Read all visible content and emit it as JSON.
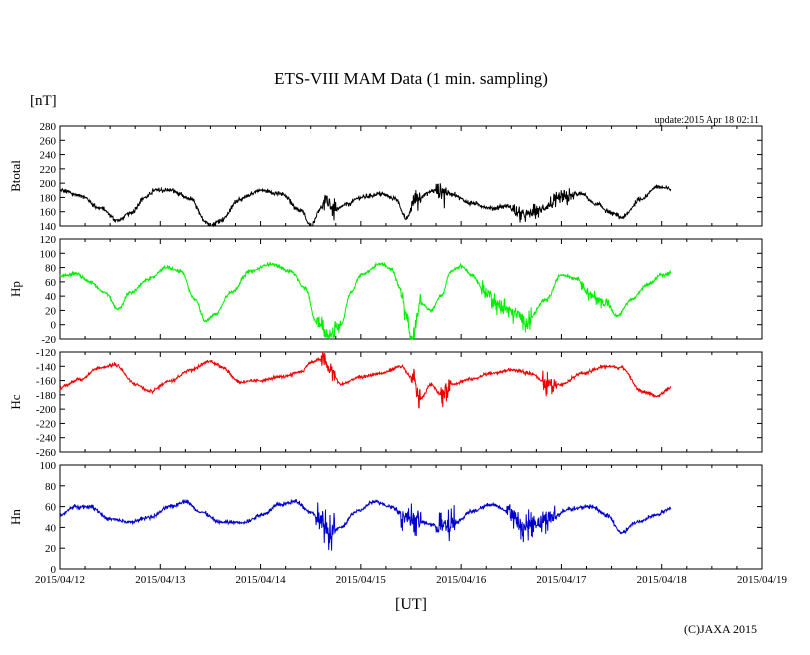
{
  "chart_data": {
    "type": "line",
    "title": "ETS-VIII MAM Data (1 min. sampling)",
    "unit_label": "[nT]",
    "update_label": "update:2015 Apr 18 02:11",
    "xlabel": "[UT]",
    "copyright": "(C)JAXA 2015",
    "x_ticks": [
      "2015/04/12",
      "2015/04/13",
      "2015/04/14",
      "2015/04/15",
      "2015/04/16",
      "2015/04/17",
      "2015/04/18",
      "2015/04/19"
    ],
    "xlim_days": [
      0,
      7
    ],
    "data_end_day": 6.09,
    "grid": false,
    "panels": [
      {
        "name": "Btotal",
        "ylabel": "Btotal",
        "color": "#000000",
        "ylim": [
          140,
          280
        ],
        "yticks": [
          140,
          160,
          180,
          200,
          220,
          240,
          260,
          280
        ],
        "x": [
          0,
          0.2,
          0.4,
          0.58,
          0.7,
          0.85,
          0.95,
          1.1,
          1.3,
          1.45,
          1.5,
          1.6,
          1.8,
          2.0,
          2.2,
          2.4,
          2.5,
          2.6,
          2.65,
          2.75,
          2.85,
          3.0,
          3.2,
          3.35,
          3.45,
          3.55,
          3.75,
          3.9,
          4.1,
          4.3,
          4.45,
          4.6,
          4.75,
          4.9,
          5.0,
          5.2,
          5.35,
          5.5,
          5.6,
          5.8,
          5.95,
          6.09
        ],
        "values": [
          190,
          183,
          165,
          148,
          158,
          180,
          190,
          190,
          178,
          147,
          140,
          148,
          178,
          190,
          185,
          162,
          140,
          165,
          175,
          162,
          170,
          180,
          185,
          178,
          150,
          180,
          190,
          185,
          172,
          165,
          168,
          155,
          160,
          170,
          178,
          185,
          170,
          158,
          152,
          178,
          195,
          192
        ],
        "noise": 4,
        "spikes": [
          [
            2.62,
            2.75,
            18
          ],
          [
            3.5,
            3.6,
            22
          ],
          [
            3.75,
            3.85,
            28
          ],
          [
            4.5,
            4.9,
            12
          ],
          [
            4.85,
            5.15,
            14
          ]
        ]
      },
      {
        "name": "Hp",
        "ylabel": "Hp",
        "color": "#00ee00",
        "ylim": [
          -20,
          120
        ],
        "yticks": [
          -20,
          0,
          20,
          40,
          60,
          80,
          100,
          120
        ],
        "x": [
          0,
          0.15,
          0.3,
          0.45,
          0.58,
          0.7,
          0.9,
          1.05,
          1.2,
          1.35,
          1.45,
          1.55,
          1.7,
          1.9,
          2.1,
          2.3,
          2.45,
          2.55,
          2.7,
          2.8,
          2.9,
          3.0,
          3.2,
          3.3,
          3.4,
          3.45,
          3.5,
          3.6,
          3.7,
          3.8,
          3.9,
          4.0,
          4.1,
          4.25,
          4.4,
          4.55,
          4.65,
          4.85,
          5.0,
          5.15,
          5.3,
          5.45,
          5.55,
          5.7,
          5.85,
          6.0,
          6.09
        ],
        "values": [
          68,
          72,
          60,
          45,
          22,
          45,
          65,
          80,
          75,
          35,
          5,
          15,
          45,
          75,
          85,
          75,
          50,
          5,
          -15,
          0,
          45,
          70,
          85,
          78,
          50,
          15,
          -18,
          30,
          20,
          40,
          75,
          82,
          70,
          45,
          25,
          15,
          5,
          35,
          70,
          65,
          40,
          30,
          12,
          35,
          55,
          70,
          72
        ],
        "noise": 3,
        "spikes": [
          [
            2.55,
            2.8,
            15
          ],
          [
            3.4,
            3.6,
            18
          ],
          [
            4.2,
            4.7,
            16
          ],
          [
            5.2,
            5.5,
            10
          ]
        ]
      },
      {
        "name": "Hc",
        "ylabel": "Hc",
        "color": "#ee0000",
        "ylim": [
          -260,
          -120
        ],
        "yticks": [
          -260,
          -240,
          -220,
          -200,
          -180,
          -160,
          -140,
          -120
        ],
        "x": [
          0,
          0.2,
          0.4,
          0.55,
          0.75,
          0.9,
          1.1,
          1.3,
          1.5,
          1.6,
          1.8,
          2.0,
          2.2,
          2.4,
          2.5,
          2.6,
          2.7,
          2.8,
          3.0,
          3.2,
          3.4,
          3.5,
          3.6,
          3.7,
          3.8,
          3.9,
          4.1,
          4.3,
          4.5,
          4.7,
          4.85,
          5.0,
          5.2,
          5.45,
          5.6,
          5.8,
          5.95,
          6.09
        ],
        "values": [
          -170,
          -158,
          -142,
          -138,
          -165,
          -175,
          -160,
          -145,
          -133,
          -140,
          -162,
          -160,
          -155,
          -148,
          -135,
          -130,
          -145,
          -165,
          -155,
          -150,
          -140,
          -155,
          -185,
          -165,
          -180,
          -165,
          -158,
          -150,
          -145,
          -150,
          -165,
          -165,
          -150,
          -140,
          -142,
          -175,
          -182,
          -170
        ],
        "noise": 3,
        "spikes": [
          [
            2.6,
            2.75,
            16
          ],
          [
            3.5,
            3.6,
            20
          ],
          [
            3.8,
            3.9,
            22
          ],
          [
            4.8,
            4.95,
            18
          ]
        ]
      },
      {
        "name": "Hn",
        "ylabel": "Hn",
        "color": "#0000cc",
        "ylim": [
          0,
          100
        ],
        "yticks": [
          0,
          20,
          40,
          60,
          80,
          100
        ],
        "x": [
          0,
          0.15,
          0.3,
          0.5,
          0.7,
          0.9,
          1.1,
          1.25,
          1.4,
          1.6,
          1.85,
          2.0,
          2.2,
          2.35,
          2.5,
          2.6,
          2.7,
          2.8,
          2.95,
          3.15,
          3.3,
          3.45,
          3.6,
          3.75,
          3.85,
          3.95,
          4.1,
          4.3,
          4.5,
          4.6,
          4.75,
          4.9,
          5.1,
          5.3,
          5.45,
          5.6,
          5.75,
          5.95,
          6.09
        ],
        "values": [
          52,
          60,
          60,
          48,
          45,
          50,
          60,
          65,
          55,
          45,
          45,
          52,
          62,
          65,
          55,
          45,
          35,
          40,
          55,
          65,
          60,
          50,
          45,
          42,
          40,
          45,
          55,
          62,
          55,
          40,
          45,
          50,
          58,
          60,
          52,
          35,
          45,
          52,
          58
        ],
        "noise": 2.5,
        "spikes": [
          [
            2.55,
            2.75,
            18
          ],
          [
            3.4,
            3.6,
            15
          ],
          [
            3.75,
            3.95,
            18
          ],
          [
            4.45,
            4.95,
            15
          ]
        ]
      }
    ]
  }
}
